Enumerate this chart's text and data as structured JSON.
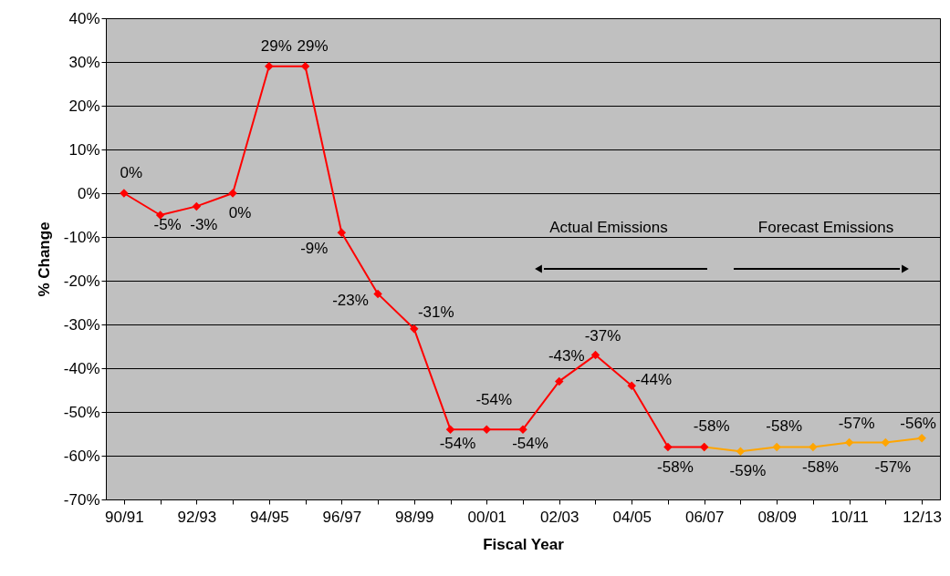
{
  "chart_data": {
    "type": "line",
    "xlabel": "Fiscal Year",
    "ylabel": "% Change",
    "categories": [
      "90/91",
      null,
      "92/93",
      null,
      "94/95",
      null,
      "96/97",
      null,
      "98/99",
      null,
      "00/01",
      null,
      "02/03",
      null,
      "04/05",
      null,
      "06/07",
      null,
      "08/09",
      null,
      "10/11",
      null,
      "12/13"
    ],
    "series": [
      {
        "color": "#ff0000",
        "values": [
          0,
          -5,
          -3,
          0,
          29,
          29,
          -9,
          -23,
          -31,
          -54,
          -54,
          -54,
          -43,
          -37,
          -44,
          -58,
          -58,
          null,
          null,
          null,
          null,
          null,
          null
        ],
        "value_labels": [
          "0%",
          "-5%",
          "-3%",
          "0%",
          "29%",
          "29%",
          "-9%",
          "-23%",
          "-31%",
          "-54%",
          "-54%",
          "-54%",
          "-43%",
          "-37%",
          "-44%",
          "-58%",
          "-58%",
          null,
          null,
          null,
          null,
          null,
          null
        ]
      },
      {
        "color": "#ffa500",
        "values": [
          null,
          null,
          null,
          null,
          null,
          null,
          null,
          null,
          null,
          null,
          null,
          null,
          null,
          null,
          null,
          null,
          -58,
          -59,
          -58,
          -58,
          -57,
          -57,
          -56
        ],
        "value_labels": [
          null,
          null,
          null,
          null,
          null,
          null,
          null,
          null,
          null,
          null,
          null,
          null,
          null,
          null,
          null,
          null,
          null,
          "-59%",
          "-58%",
          "-58%",
          "-57%",
          "-57%",
          "-56%"
        ]
      }
    ],
    "ylim": [
      -70,
      40
    ],
    "yticks": [
      {
        "value": -70,
        "label": "-70%"
      },
      {
        "value": -60,
        "label": "-60%"
      },
      {
        "value": -50,
        "label": "-50%"
      },
      {
        "value": -40,
        "label": "-40%"
      },
      {
        "value": -30,
        "label": "-30%"
      },
      {
        "value": -20,
        "label": "-20%"
      },
      {
        "value": -10,
        "label": "-10%"
      },
      {
        "value": 0,
        "label": "0%"
      },
      {
        "value": 10,
        "label": "10%"
      },
      {
        "value": 20,
        "label": "20%"
      },
      {
        "value": 30,
        "label": "30%"
      },
      {
        "value": 40,
        "label": "40%"
      }
    ],
    "annotations": [
      "Actual Emissions",
      "Forecast Emissions"
    ],
    "grid": "y",
    "marker": "diamond",
    "line_style": "solid"
  }
}
